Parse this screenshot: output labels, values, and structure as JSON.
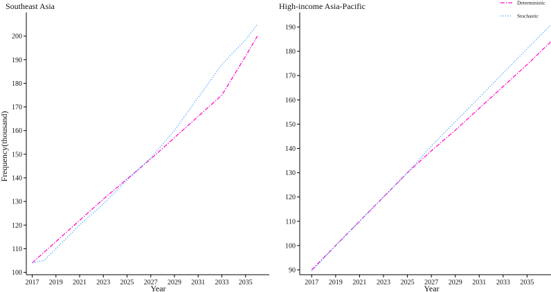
{
  "chart_data": [
    {
      "type": "line",
      "title": "Southeast Asia",
      "xlabel": "Year",
      "ylabel": "Frequency(thousand)",
      "x": [
        2017,
        2019,
        2021,
        2023,
        2025,
        2027,
        2029,
        2031,
        2033,
        2035,
        2036
      ],
      "xticks": [
        "2017",
        "2019",
        "2021",
        "2023",
        "2025",
        "2027",
        "2029",
        "2031",
        "2033",
        "2035"
      ],
      "yticks": [
        "100",
        "110",
        "120",
        "130",
        "140",
        "150",
        "160",
        "170",
        "180",
        "190",
        "200"
      ],
      "xlim": [
        2016.5,
        2037
      ],
      "ylim": [
        99,
        210
      ],
      "series": [
        {
          "name": "Deterministic",
          "color": "#ff00cc",
          "dash": "dashdot",
          "x": [
            2017,
            2019,
            2021,
            2023,
            2025,
            2027,
            2029,
            2031,
            2033,
            2035,
            2036
          ],
          "values": [
            104,
            113,
            122,
            131,
            139.5,
            148,
            157,
            166,
            175,
            191.5,
            200
          ]
        },
        {
          "name": "Stochastic",
          "color": "#3399ff",
          "dash": "dot",
          "x": [
            2017,
            2018,
            2019,
            2021,
            2023,
            2025,
            2027,
            2029,
            2031,
            2033,
            2035,
            2036
          ],
          "values": [
            104,
            105,
            110,
            120,
            129,
            139,
            148.5,
            160,
            174,
            188,
            198.5,
            205
          ]
        }
      ]
    },
    {
      "type": "line",
      "title": "High-income Asia-Pacific",
      "xlabel": "Year",
      "ylabel": "",
      "x": [
        2017,
        2019,
        2021,
        2023,
        2025,
        2027,
        2029,
        2031,
        2033,
        2035,
        2037
      ],
      "xticks": [
        "2017",
        "2019",
        "2021",
        "2023",
        "2025",
        "2027",
        "2029",
        "2031",
        "2033",
        "2035"
      ],
      "yticks": [
        "90",
        "100",
        "110",
        "120",
        "130",
        "140",
        "150",
        "160",
        "170",
        "180",
        "190"
      ],
      "xlim": [
        2016,
        2037
      ],
      "ylim": [
        88,
        196
      ],
      "legend": {
        "placement": "top-right",
        "entries": [
          "Deterministic",
          "Stochastic"
        ]
      },
      "series": [
        {
          "name": "Deterministic",
          "color": "#ff00cc",
          "dash": "dashdot",
          "x": [
            2017,
            2019,
            2021,
            2023,
            2025,
            2027,
            2029,
            2031,
            2033,
            2035,
            2037
          ],
          "values": [
            90,
            100,
            110,
            120,
            130,
            139,
            147.5,
            156.5,
            165.5,
            174.5,
            184
          ]
        },
        {
          "name": "Stochastic",
          "color": "#3399ff",
          "dash": "dot",
          "x": [
            2017,
            2019,
            2021,
            2023,
            2025,
            2027,
            2029,
            2031,
            2033,
            2035,
            2037
          ],
          "values": [
            89.5,
            100,
            110,
            120,
            130,
            141,
            151,
            161,
            171,
            181,
            191
          ]
        }
      ]
    }
  ]
}
